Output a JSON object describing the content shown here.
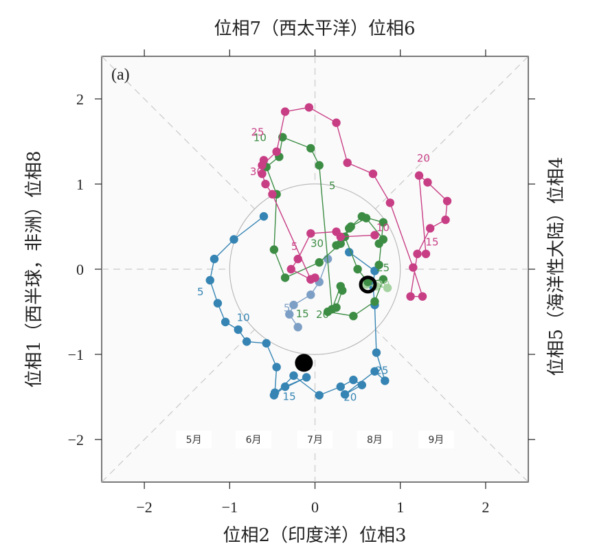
{
  "chart_data": {
    "type": "scatter",
    "panel_tag": "(a)",
    "xlabel": "位相2（印度洋）位相3",
    "ylabel": "位相1（西半球，非洲）位相8",
    "top_label": "位相7（西太平洋）位相6",
    "right_label": "位相5（海洋性大陆）位相4",
    "xlim": [
      -2.5,
      2.5
    ],
    "ylim": [
      -2.5,
      2.5
    ],
    "xticks": [
      -2,
      -1,
      0,
      1,
      2
    ],
    "yticks": [
      -2,
      -1,
      0,
      1,
      2
    ],
    "xtick_labels": [
      "−2",
      "−1",
      "0",
      "1",
      "2"
    ],
    "ytick_labels": [
      "−2",
      "−1",
      "0",
      "1",
      "2"
    ],
    "unit_circle_radius": 1,
    "month_boxes": [
      {
        "label": "5月",
        "color": "#2c6ea3"
      },
      {
        "label": "6月",
        "color": "#7d9fc5"
      },
      {
        "label": "7月",
        "color": "#a5d3a1"
      },
      {
        "label": "8月",
        "color": "#3a8a45"
      },
      {
        "label": "9月",
        "color": "#c73a80"
      }
    ],
    "series": [
      {
        "color": "#3584b3",
        "x": [
          -0.6,
          -0.95,
          -1.18,
          -1.23,
          -1.14,
          -1.05,
          -0.9,
          -0.8,
          -0.57,
          -0.45,
          -0.47,
          -0.1,
          -0.35,
          -0.48,
          -0.25,
          0.05,
          0.3,
          0.45,
          0.55,
          0.35,
          0.7,
          0.82,
          0.72,
          0.7,
          0.68,
          0.7,
          0.4
        ],
        "y": [
          0.62,
          0.35,
          0.12,
          -0.13,
          -0.4,
          -0.62,
          -0.71,
          -0.85,
          -0.87,
          -1.15,
          -1.45,
          -1.27,
          -1.38,
          -1.48,
          -1.25,
          -1.48,
          -1.38,
          -1.3,
          -1.36,
          -1.47,
          -1.2,
          -1.31,
          -0.98,
          -0.42,
          -0.2,
          -0.02,
          0.2
        ],
        "labels": [
          {
            "i": 3,
            "text": "5",
            "dx": -14,
            "dy": 22
          },
          {
            "i": 7,
            "text": "10",
            "dx": -5,
            "dy": -30
          },
          {
            "i": 11,
            "text": "15",
            "dx": -25,
            "dy": 33
          },
          {
            "i": 18,
            "text": "20",
            "dx": -17,
            "dy": 23
          },
          {
            "i": 22,
            "text": "25",
            "dx": 8,
            "dy": 31
          }
        ]
      },
      {
        "color": "#7d9fc5",
        "x": [
          0.15,
          0.05,
          -0.05,
          -0.25,
          -0.3,
          -0.2
        ],
        "y": [
          0.12,
          -0.15,
          -0.3,
          -0.42,
          -0.53,
          -0.68
        ],
        "labels": [
          {
            "i": 5,
            "text": "5",
            "dx": -16,
            "dy": -23
          }
        ]
      },
      {
        "color": "#a5d3a1",
        "x": [
          0.6,
          0.72,
          0.85
        ],
        "y": [
          -0.18,
          -0.2,
          -0.22
        ],
        "labels": [
          {
            "i": 2,
            "text": "30",
            "dx": -6,
            "dy": 0
          }
        ]
      },
      {
        "color": "#3c8c44",
        "x": [
          0.75,
          0.8,
          0.6,
          0.42,
          0.3,
          0.05,
          -0.35,
          -0.48,
          -0.45,
          -0.57,
          -0.42,
          -0.38,
          -0.05,
          0.05,
          0.2,
          0.3,
          0.32,
          0.25,
          0.15,
          0.45,
          0.7,
          0.8,
          0.62,
          0.5,
          0.35,
          0.25,
          0.4,
          0.55,
          0.8,
          0.75
        ],
        "y": [
          0.3,
          0.35,
          0.6,
          0.5,
          0.3,
          0.08,
          -0.1,
          0.23,
          0.88,
          1.2,
          1.32,
          1.55,
          1.42,
          1.22,
          -0.47,
          -0.2,
          -0.25,
          -0.45,
          -0.5,
          -0.55,
          -0.38,
          -0.12,
          -0.15,
          0.0,
          0.38,
          0.28,
          0.48,
          0.62,
          0.55,
          0.05
        ],
        "labels": [
          {
            "i": 13,
            "text": "5",
            "dx": 19,
            "dy": 35
          },
          {
            "i": 10,
            "text": "10",
            "dx": -28,
            "dy": -23
          },
          {
            "i": 18,
            "text": "15",
            "dx": -37,
            "dy": 8
          },
          {
            "i": 17,
            "text": "20",
            "dx": -20,
            "dy": 15
          },
          {
            "i": 29,
            "text": "25",
            "dx": 6,
            "dy": 9
          },
          {
            "i": 25,
            "text": "30",
            "dx": -28,
            "dy": 2
          }
        ]
      },
      {
        "color": "#c83e85",
        "x": [
          0.7,
          0.3,
          0.25,
          -0.05,
          -0.2,
          -0.28,
          -0.05,
          0.0,
          -0.05,
          -0.5,
          -0.58,
          -0.62,
          -0.6,
          -0.62,
          -0.45,
          -0.35,
          -0.07,
          0.25,
          0.38,
          0.68,
          0.88,
          1.15,
          1.26,
          1.12,
          1.2,
          1.35,
          1.53,
          1.55,
          1.32,
          1.22,
          1.3
        ],
        "y": [
          0.4,
          0.38,
          0.44,
          0.42,
          0.12,
          0.0,
          -0.12,
          -0.1,
          -0.12,
          0.88,
          1.0,
          1.12,
          1.28,
          1.22,
          1.38,
          1.85,
          1.9,
          1.72,
          1.25,
          1.12,
          0.78,
          0.02,
          -0.32,
          -0.32,
          0.18,
          0.48,
          0.58,
          0.8,
          1.02,
          1.1,
          0.18
        ],
        "labels": [
          {
            "i": 4,
            "text": "5",
            "dx": -5,
            "dy": -13
          },
          {
            "i": 0,
            "text": "10",
            "dx": 12,
            "dy": -6
          },
          {
            "i": 30,
            "text": "15",
            "dx": 9,
            "dy": -12
          },
          {
            "i": 28,
            "text": "20",
            "dx": -6,
            "dy": -30
          },
          {
            "i": 15,
            "text": "25",
            "dx": -40,
            "dy": 35
          },
          {
            "i": 10,
            "text": "30",
            "dx": -13,
            "dy": -13
          }
        ]
      }
    ],
    "markers": [
      {
        "x": -0.13,
        "y": -1.1,
        "style": "filled"
      },
      {
        "x": 0.62,
        "y": -0.18,
        "style": "ring"
      }
    ]
  }
}
